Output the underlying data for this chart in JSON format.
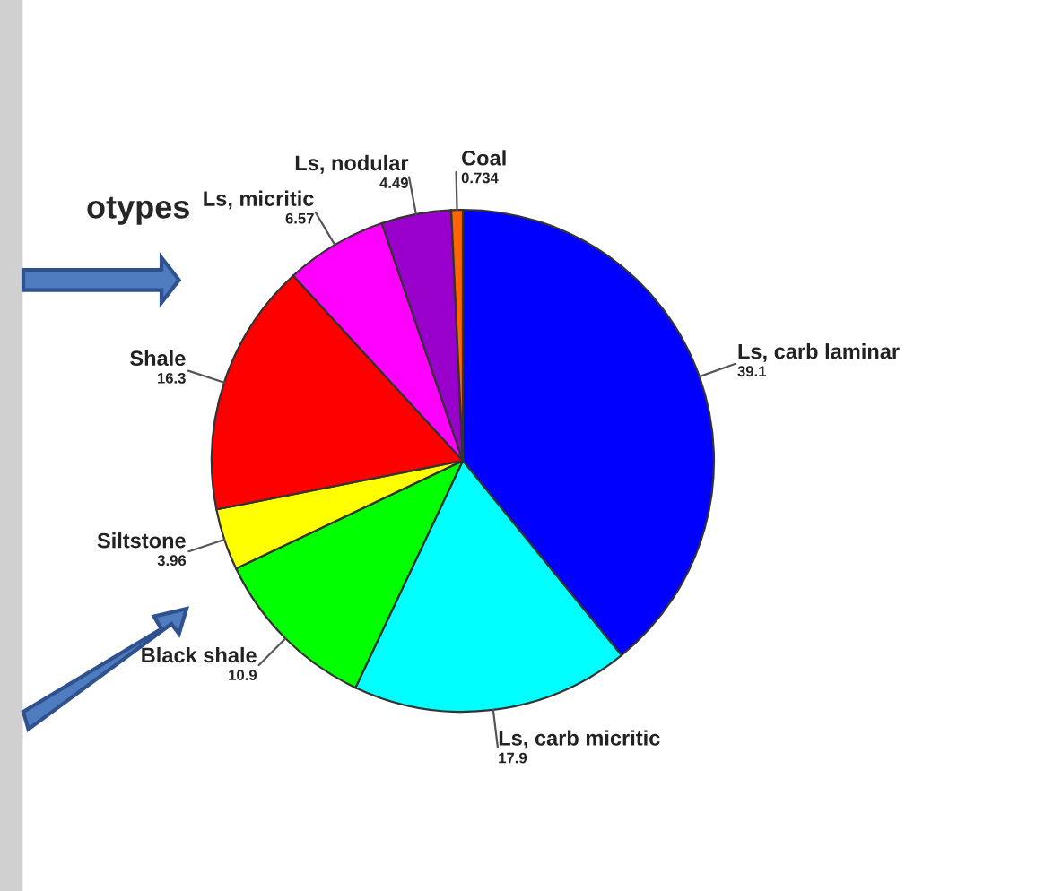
{
  "chart_data": {
    "type": "pie",
    "title": "otypes",
    "categories": [
      "Ls, carb laminar",
      "Ls, carb micritic",
      "Black shale",
      "Siltstone",
      "Shale",
      "Ls, micritic",
      "Ls, nodular",
      "Coal"
    ],
    "values": [
      39.1,
      17.9,
      10.9,
      3.96,
      16.3,
      6.57,
      4.49,
      0.734
    ],
    "colors": [
      "#0000ff",
      "#00ffff",
      "#00ff00",
      "#ffff00",
      "#ff0000",
      "#ff00ff",
      "#9900cc",
      "#ff6600"
    ],
    "data_labels": true
  }
}
